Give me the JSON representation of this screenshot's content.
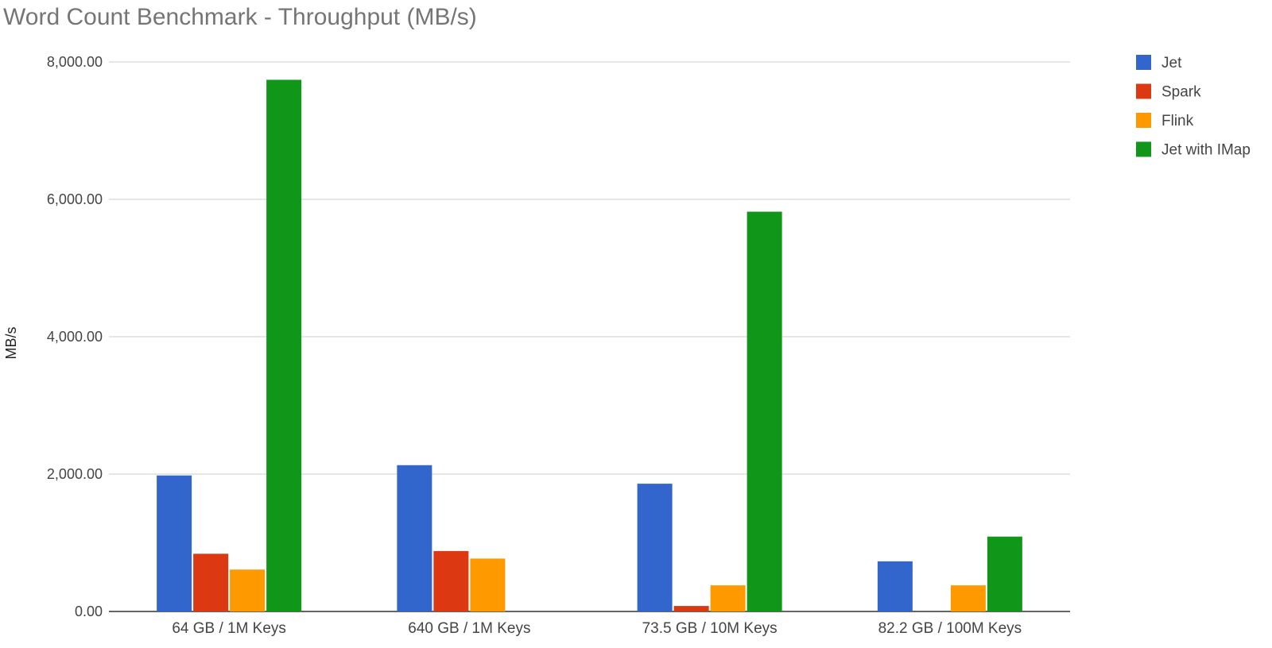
{
  "chart_data": {
    "type": "bar",
    "title": "Word Count Benchmark - Throughput (MB/s)",
    "xlabel": "",
    "ylabel": "MB/s",
    "ylim": [
      0,
      8000
    ],
    "yticks": [
      0,
      2000,
      4000,
      6000,
      8000
    ],
    "ytick_labels": [
      "0.00",
      "2,000.00",
      "4,000.00",
      "6,000.00",
      "8,000.00"
    ],
    "grid": true,
    "legend_position": "right",
    "categories": [
      "64 GB / 1M Keys",
      "640 GB / 1M Keys",
      "73.5 GB / 10M Keys",
      "82.2 GB / 100M Keys"
    ],
    "series": [
      {
        "name": "Jet",
        "color": "#3366cc",
        "values": [
          1980,
          2130,
          1860,
          730
        ]
      },
      {
        "name": "Spark",
        "color": "#dc3912",
        "values": [
          840,
          880,
          80,
          0
        ]
      },
      {
        "name": "Flink",
        "color": "#ff9900",
        "values": [
          610,
          770,
          380,
          380
        ]
      },
      {
        "name": "Jet with IMap",
        "color": "#109618",
        "values": [
          7740,
          0,
          5820,
          1090
        ]
      }
    ]
  }
}
